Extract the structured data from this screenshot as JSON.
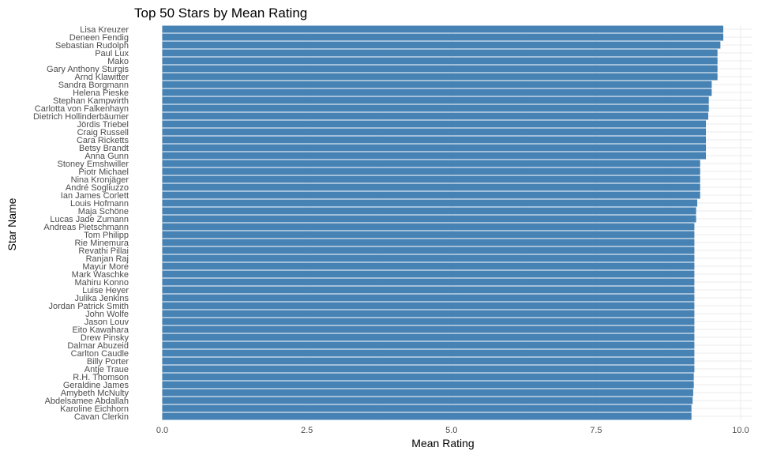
{
  "chart_data": {
    "type": "bar",
    "orientation": "horizontal",
    "title": "Top 50 Stars by Mean Rating",
    "xlabel": "Mean Rating",
    "ylabel": "Star Name",
    "xlim": [
      0,
      10
    ],
    "xticks": [
      0,
      2.5,
      5,
      7.5,
      10
    ],
    "xtick_labels": [
      "0.0",
      "2.5",
      "5.0",
      "7.5",
      "10.0"
    ],
    "grid": true,
    "bar_color": "#4682b4",
    "categories": [
      "Lisa Kreuzer",
      "Deneen Fendig",
      "Sebastian Rudolph",
      "Paul Lux",
      "Mako",
      "Gary Anthony Sturgis",
      "Arnd Klawitter",
      "Sandra Borgmann",
      "Helena Pieske",
      "Stephan Kampwirth",
      "Carlotta von Falkenhayn",
      "Dietrich Hollinderbäumer",
      "Jördis Triebel",
      "Craig Russell",
      "Cara Ricketts",
      "Betsy Brandt",
      "Anna Gunn",
      "Stoney Emshwiller",
      "Piotr Michael",
      "Nina Kronjäger",
      "André Sogliuzzo",
      "Ian James Corlett",
      "Louis Hofmann",
      "Maja Schöne",
      "Lucas Jade Zumann",
      "Andreas Pietschmann",
      "Tom Philipp",
      "Rie Minemura",
      "Revathi Pillai",
      "Ranjan Raj",
      "Mayur More",
      "Mark Waschke",
      "Mahiru Konno",
      "Luise Heyer",
      "Julika Jenkins",
      "Jordan Patrick Smith",
      "John Wolfe",
      "Jason Louv",
      "Eito Kawahara",
      "Drew Pinsky",
      "Dalmar Abuzeid",
      "Carlton Caudle",
      "Billy Porter",
      "Antje Traue",
      "R.H. Thomson",
      "Geraldine James",
      "Amybeth McNulty",
      "Abdelsamee Abdallah",
      "Karoline Eichhorn",
      "Cavan Clerkin"
    ],
    "values": [
      9.7,
      9.7,
      9.65,
      9.6,
      9.6,
      9.6,
      9.6,
      9.5,
      9.5,
      9.45,
      9.45,
      9.44,
      9.4,
      9.4,
      9.4,
      9.4,
      9.4,
      9.3,
      9.3,
      9.3,
      9.3,
      9.3,
      9.25,
      9.23,
      9.23,
      9.2,
      9.2,
      9.2,
      9.2,
      9.2,
      9.2,
      9.2,
      9.2,
      9.2,
      9.2,
      9.2,
      9.2,
      9.2,
      9.2,
      9.2,
      9.2,
      9.2,
      9.2,
      9.2,
      9.19,
      9.19,
      9.18,
      9.17,
      9.15,
      9.15
    ]
  }
}
